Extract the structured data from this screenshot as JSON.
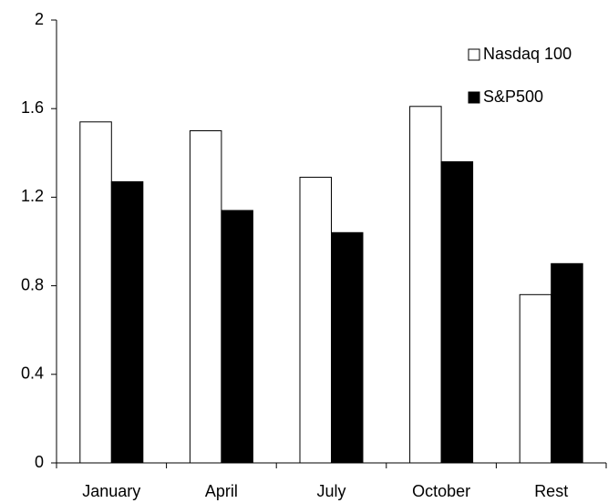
{
  "chart_data": {
    "type": "bar",
    "categories": [
      "January",
      "April",
      "July",
      "October",
      "Rest"
    ],
    "series": [
      {
        "name": "Nasdaq 100",
        "color": "#ffffff",
        "values": [
          1.54,
          1.5,
          1.29,
          1.61,
          0.76
        ]
      },
      {
        "name": "S&P500",
        "color": "#000000",
        "values": [
          1.27,
          1.14,
          1.04,
          1.36,
          0.9
        ]
      }
    ],
    "ylim": [
      0,
      2
    ],
    "yticks": [
      0,
      0.4,
      0.8,
      1.2,
      1.6,
      2
    ],
    "grid": false,
    "legend": "top-right"
  }
}
